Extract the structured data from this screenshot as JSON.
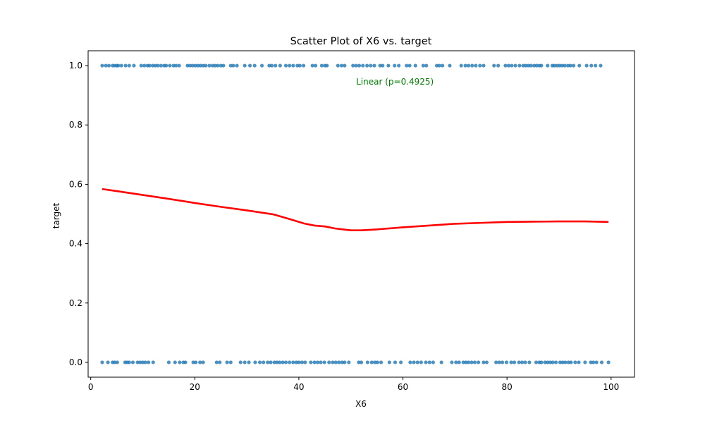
{
  "chart_data": {
    "type": "scatter",
    "title": "Scatter Plot of X6 vs. target",
    "xlabel": "X6",
    "ylabel": "target",
    "xlim": [
      -0.5,
      104.5
    ],
    "ylim": [
      -0.05,
      1.05
    ],
    "x_ticks": [
      0,
      20,
      40,
      60,
      80,
      100
    ],
    "x_tick_labels": [
      "0",
      "20",
      "40",
      "60",
      "80",
      "100"
    ],
    "y_ticks": [
      0.0,
      0.2,
      0.4,
      0.6,
      0.8,
      1.0
    ],
    "y_tick_labels": [
      "0.0",
      "0.2",
      "0.4",
      "0.6",
      "0.8",
      "1.0"
    ],
    "grid": false,
    "series": [
      {
        "kind": "scatter",
        "color": "#1f77b4",
        "y_value": 1,
        "x": [
          2.2,
          2.9,
          3.5,
          4.2,
          4.6,
          5.0,
          5.3,
          5.9,
          6.7,
          7.4,
          8.3,
          9.7,
          10.3,
          10.9,
          11.3,
          11.9,
          12.4,
          12.9,
          13.5,
          14.1,
          14.5,
          15.2,
          15.9,
          16.4,
          17.0,
          18.6,
          19.1,
          19.6,
          20.1,
          20.6,
          21.1,
          21.6,
          22.1,
          22.8,
          23.4,
          23.9,
          24.4,
          25.0,
          25.5,
          26.9,
          27.4,
          28.1,
          29.6,
          30.6,
          31.5,
          32.9,
          34.3,
          34.8,
          35.5,
          36.4,
          37.5,
          38.2,
          38.9,
          39.7,
          40.2,
          40.9,
          42.6,
          43.2,
          44.4,
          45.0,
          45.4,
          47.5,
          48.2,
          48.8,
          50.4,
          51.0,
          51.6,
          52.3,
          53.1,
          53.8,
          54.5,
          55.6,
          56.1,
          57.2,
          58.4,
          59.2,
          60.7,
          61.3,
          62.4,
          63.9,
          64.5,
          66.5,
          67.0,
          67.6,
          69.0,
          71.2,
          72.0,
          72.6,
          73.3,
          74.0,
          74.8,
          75.5,
          77.5,
          78.3,
          79.7,
          80.3,
          80.9,
          81.6,
          82.4,
          83.1,
          83.6,
          84.1,
          84.6,
          85.2,
          85.7,
          86.2,
          86.6,
          87.8,
          88.7,
          89.1,
          89.6,
          90.1,
          90.6,
          91.1,
          91.7,
          92.2,
          92.8,
          93.9,
          95.3,
          96.2,
          97.0,
          98.0
        ]
      },
      {
        "kind": "scatter",
        "color": "#1f77b4",
        "y_value": 0,
        "x": [
          2.2,
          3.3,
          4.2,
          4.6,
          5.1,
          6.6,
          7.0,
          7.4,
          8.1,
          9.0,
          9.5,
          10.0,
          10.5,
          11.1,
          12.0,
          15.0,
          16.2,
          17.1,
          17.8,
          18.2,
          19.7,
          20.2,
          21.0,
          21.6,
          24.2,
          24.8,
          26.2,
          26.9,
          28.8,
          29.6,
          30.4,
          31.6,
          32.5,
          33.2,
          34.0,
          34.6,
          35.3,
          35.8,
          36.3,
          36.9,
          37.5,
          38.2,
          38.9,
          39.5,
          40.0,
          40.6,
          41.2,
          42.3,
          43.0,
          43.6,
          44.2,
          44.9,
          45.8,
          46.5,
          47.1,
          47.7,
          48.3,
          48.8,
          49.6,
          51.5,
          52.0,
          53.2,
          54.0,
          54.6,
          55.1,
          55.8,
          57.4,
          58.5,
          59.6,
          61.4,
          62.1,
          62.8,
          63.5,
          64.4,
          65.1,
          65.8,
          67.4,
          69.4,
          70.2,
          70.8,
          71.6,
          72.1,
          72.6,
          73.2,
          73.8,
          74.5,
          75.5,
          76.1,
          77.9,
          78.5,
          79.1,
          79.9,
          80.8,
          81.4,
          82.3,
          82.9,
          83.5,
          84.3,
          85.6,
          86.2,
          86.6,
          87.3,
          87.8,
          88.3,
          88.8,
          89.4,
          90.2,
          90.7,
          91.2,
          91.8,
          92.3,
          93.1,
          93.8,
          95.0,
          96.1,
          96.6,
          97.2,
          98.2,
          99.5
        ]
      },
      {
        "kind": "line",
        "color": "#ff0000",
        "x": [
          2.2,
          5,
          10,
          15,
          20,
          25,
          30,
          35,
          38,
          41,
          43,
          45,
          47,
          50,
          52,
          55,
          60,
          65,
          70,
          75,
          80,
          85,
          90,
          95,
          99.5
        ],
        "y": [
          0.584,
          0.577,
          0.564,
          0.551,
          0.537,
          0.524,
          0.512,
          0.499,
          0.484,
          0.468,
          0.461,
          0.458,
          0.451,
          0.445,
          0.445,
          0.448,
          0.455,
          0.461,
          0.467,
          0.47,
          0.473,
          0.474,
          0.475,
          0.475,
          0.473
        ]
      }
    ],
    "annotations": [
      {
        "text": "Linear (p=0.4925)",
        "x": 51,
        "y": 0.945,
        "color": "#008000"
      }
    ]
  }
}
